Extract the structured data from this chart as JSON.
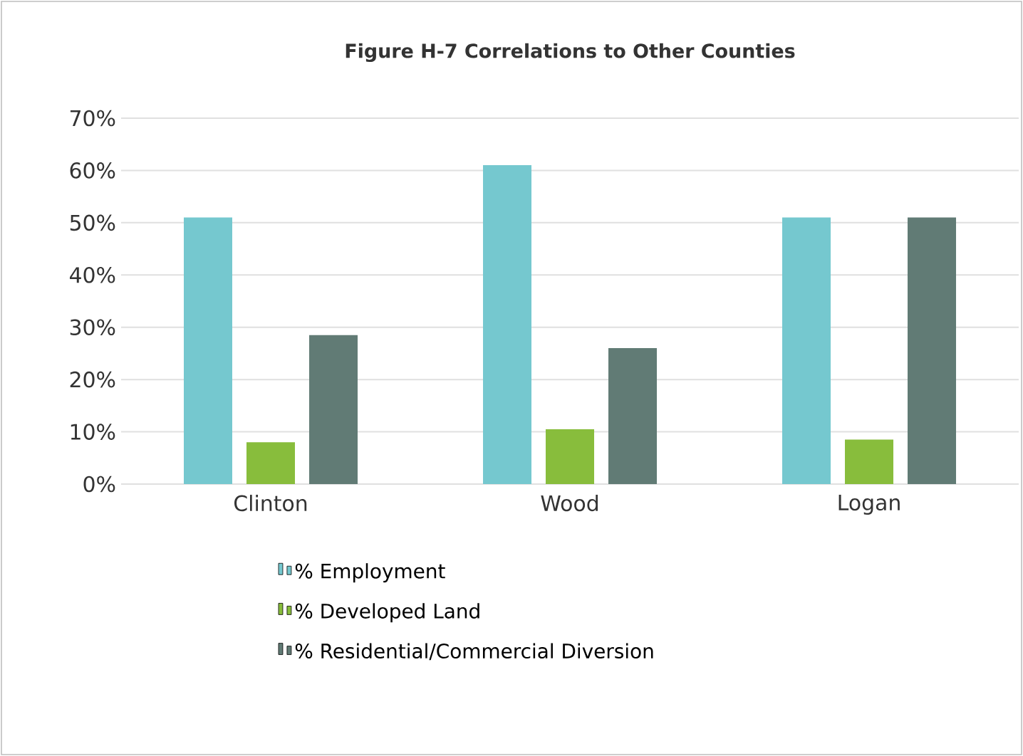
{
  "chart_data": {
    "type": "bar",
    "title": "Figure H-7 Correlations to Other Counties",
    "categories": [
      "Clinton",
      "Wood",
      "Logan"
    ],
    "series": [
      {
        "name": "% Employment",
        "color": "#75c8cf",
        "values": [
          51,
          61,
          51
        ]
      },
      {
        "name": "% Developed Land",
        "color": "#88bd3c",
        "values": [
          8,
          10.5,
          8.5
        ]
      },
      {
        "name": "% Residential/Commercial Diversion",
        "color": "#617b75",
        "values": [
          28.5,
          26,
          51
        ]
      }
    ],
    "ylim": [
      0,
      70
    ],
    "yticks": [
      {
        "value": 0,
        "label": "0%"
      },
      {
        "value": 10,
        "label": "10%"
      },
      {
        "value": 20,
        "label": "20%"
      },
      {
        "value": 30,
        "label": "30%"
      },
      {
        "value": 40,
        "label": "40%"
      },
      {
        "value": 50,
        "label": "50%"
      },
      {
        "value": 60,
        "label": "60%"
      },
      {
        "value": 70,
        "label": "70%"
      }
    ],
    "grid": "y",
    "legend": "bottom"
  }
}
